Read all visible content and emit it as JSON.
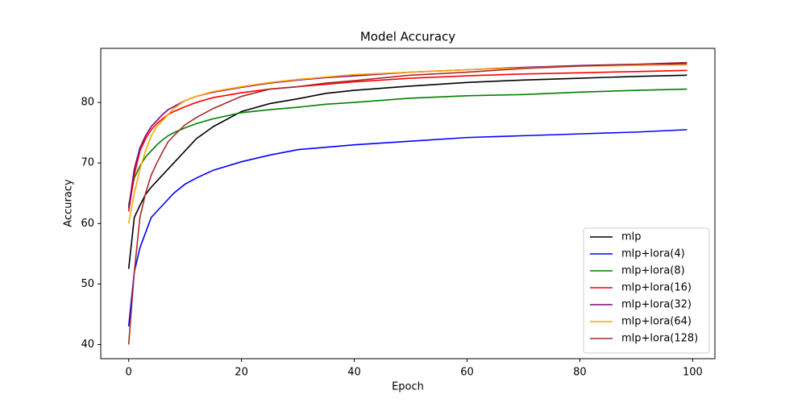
{
  "chart_data": {
    "type": "line",
    "title": "Model Accuracy",
    "x_label": "Epoch",
    "y_label": "Accuracy",
    "x": [
      0,
      1,
      2,
      3,
      4,
      5,
      6,
      7,
      8,
      10,
      12,
      15,
      20,
      25,
      30,
      35,
      40,
      50,
      60,
      70,
      80,
      90,
      99
    ],
    "series": [
      {
        "name": "mlp",
        "color": "black",
        "values": [
          52.5,
          61,
          63,
          64.8,
          66,
          67,
          68,
          69,
          70,
          72,
          74,
          76,
          78.5,
          79.8,
          80.6,
          81.5,
          82,
          82.7,
          83.3,
          83.7,
          84,
          84.3,
          84.5
        ]
      },
      {
        "name": "mlp+lora(4)",
        "color": "blue",
        "values": [
          43,
          52,
          56,
          58.5,
          61,
          62,
          63,
          64,
          65,
          66.5,
          67.5,
          68.8,
          70.2,
          71.3,
          72.2,
          72.6,
          73,
          73.6,
          74.2,
          74.5,
          74.8,
          75.1,
          75.5
        ]
      },
      {
        "name": "mlp+lora(8)",
        "color": "green",
        "values": [
          63,
          67.5,
          69.5,
          71,
          72,
          73,
          73.8,
          74.5,
          75,
          75.8,
          76.5,
          77.3,
          78.3,
          78.8,
          79.2,
          79.7,
          80,
          80.7,
          81.1,
          81.3,
          81.7,
          82,
          82.2
        ]
      },
      {
        "name": "mlp+lora(16)",
        "color": "red",
        "values": [
          62,
          68,
          72,
          74,
          75.5,
          76.5,
          77.3,
          78,
          78.5,
          79.3,
          80,
          80.8,
          81.6,
          82.2,
          82.6,
          83,
          83.4,
          84,
          84.4,
          84.7,
          84.9,
          85.1,
          85.3
        ]
      },
      {
        "name": "mlp+lora(32)",
        "color": "purple",
        "values": [
          62.5,
          69,
          72.5,
          74.5,
          76,
          77,
          78,
          78.8,
          79.3,
          80.3,
          81,
          81.7,
          82.5,
          83.2,
          83.7,
          84.1,
          84.4,
          85,
          85.4,
          85.8,
          86.1,
          86.3,
          86.4
        ]
      },
      {
        "name": "mlp+lora(64)",
        "color": "orange",
        "values": [
          60,
          65,
          69,
          72,
          74.5,
          76,
          77,
          78,
          79,
          80.3,
          81,
          81.8,
          82.6,
          83.3,
          83.8,
          84.2,
          84.6,
          85,
          85.4,
          85.7,
          86,
          86.1,
          86.2
        ]
      },
      {
        "name": "mlp+lora(128)",
        "color": "brown",
        "values": [
          40,
          52,
          61,
          65,
          68,
          70,
          71.8,
          73.5,
          74.5,
          76.3,
          77.5,
          79,
          81,
          82.2,
          82.6,
          83.2,
          83.6,
          84.5,
          85,
          85.6,
          86,
          86.3,
          86.6
        ]
      }
    ],
    "xlim": [
      -4.95,
      103.95
    ],
    "ylim": [
      37.67,
      88.93
    ],
    "xticks": [
      0,
      20,
      40,
      60,
      80,
      100
    ],
    "yticks": [
      40,
      50,
      60,
      70,
      80
    ],
    "legend": "lower right"
  }
}
